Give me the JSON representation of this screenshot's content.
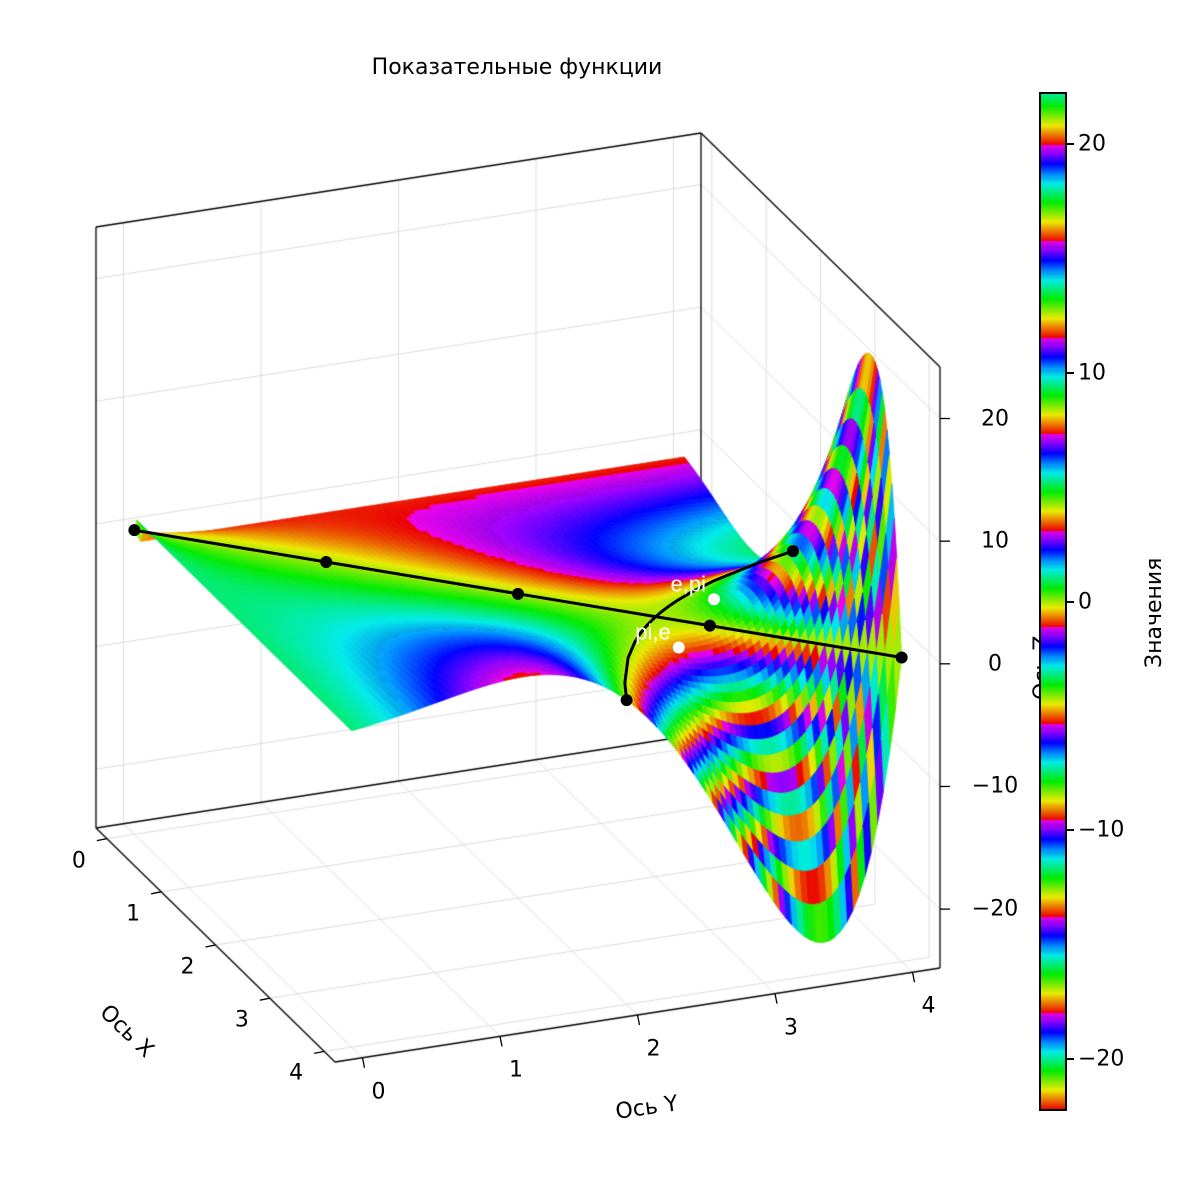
{
  "chart_data": {
    "type": "surface",
    "title": "Показательные функции",
    "xlabel": "Ось X",
    "ylabel": "Ось Y",
    "zlabel": "Ось Z",
    "surface": {
      "z": "x^y - y^x",
      "x_range": [
        0,
        4
      ],
      "y_range": [
        0,
        4
      ]
    },
    "xlim": [
      -0.2,
      4.2
    ],
    "ylim": [
      -0.2,
      4.2
    ],
    "zlim": [
      -24.8,
      24.2
    ],
    "x_ticks": [
      "0",
      "1",
      "2",
      "3",
      "4"
    ],
    "y_ticks": [
      "0",
      "1",
      "2",
      "3",
      "4"
    ],
    "z_ticks": [
      "−20",
      "−10",
      "0",
      "10",
      "20"
    ],
    "z_tick_values": [
      -20,
      -10,
      0,
      10,
      20
    ],
    "grid": true,
    "lines": [
      {
        "points": [
          [
            0,
            0,
            0
          ],
          [
            1,
            1,
            0
          ],
          [
            2,
            2,
            0
          ],
          [
            3,
            3,
            0
          ],
          [
            4,
            4,
            0
          ]
        ],
        "color": "#000000"
      },
      {
        "curve": "x^y = y^x",
        "points": [
          [
            4,
            2,
            0
          ],
          [
            2,
            4,
            0
          ]
        ],
        "color": "#000000"
      }
    ],
    "scatter": [
      {
        "label": "e,pi",
        "x": 2.71828,
        "y": 3.14159,
        "z": 0.681,
        "color": "#ffffff"
      },
      {
        "label": "pi,e",
        "x": 3.14159,
        "y": 2.71828,
        "z": -0.681,
        "color": "#ffffff"
      }
    ],
    "colorbar": {
      "label": "Значения",
      "range": [
        -22.2,
        22.2
      ],
      "ticks": [
        "−20",
        "−10",
        "0",
        "10",
        "20"
      ],
      "tick_values": [
        -20,
        -10,
        0,
        10,
        20
      ],
      "colormap": "prism"
    }
  }
}
